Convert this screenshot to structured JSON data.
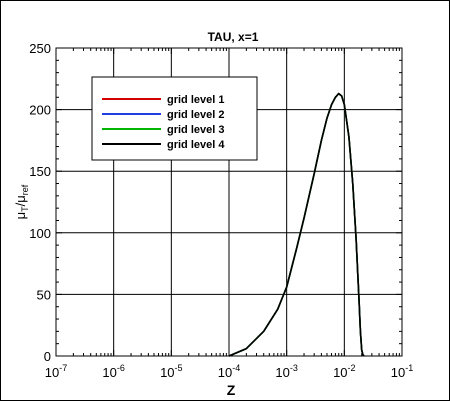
{
  "chart_data": {
    "type": "line",
    "title": "TAU, x=1",
    "xlabel": "Z",
    "ylabel_main": "μ",
    "ylabel_sub_num": "T",
    "ylabel_slash": "/μ",
    "ylabel_sub_den": "ref",
    "xscale": "log",
    "xlim": [
      1e-07,
      0.1
    ],
    "ylim": [
      0,
      250
    ],
    "grid": true,
    "legend_position": "top-left",
    "xticks": [
      {
        "base": "10",
        "exp": "-7"
      },
      {
        "base": "10",
        "exp": "-6"
      },
      {
        "base": "10",
        "exp": "-5"
      },
      {
        "base": "10",
        "exp": "-4"
      },
      {
        "base": "10",
        "exp": "-3"
      },
      {
        "base": "10",
        "exp": "-2"
      },
      {
        "base": "10",
        "exp": "-1"
      }
    ],
    "yticks": [
      "0",
      "50",
      "100",
      "150",
      "200",
      "250"
    ],
    "series": [
      {
        "name": "grid level 1",
        "color": "#d40000",
        "x": [
          0.0001,
          0.0002,
          0.0004,
          0.0007,
          0.001,
          0.0015,
          0.002,
          0.003,
          0.004,
          0.005,
          0.006,
          0.007,
          0.008,
          0.009,
          0.01,
          0.012,
          0.014,
          0.016,
          0.018,
          0.019,
          0.02,
          0.021,
          0.022
        ],
        "y": [
          0,
          6,
          20,
          38,
          56,
          88,
          112,
          148,
          175,
          193,
          204,
          210,
          213,
          211,
          204,
          178,
          140,
          95,
          45,
          20,
          5,
          1,
          0
        ]
      },
      {
        "name": "grid level 2",
        "color": "#1f3fe0",
        "x": [
          0.0001,
          0.0002,
          0.0004,
          0.0007,
          0.001,
          0.0015,
          0.002,
          0.003,
          0.004,
          0.005,
          0.006,
          0.007,
          0.008,
          0.009,
          0.01,
          0.012,
          0.014,
          0.016,
          0.018,
          0.019,
          0.02,
          0.021,
          0.022
        ],
        "y": [
          0,
          6,
          20,
          38,
          56,
          88,
          112,
          148,
          175,
          193,
          204,
          210,
          213,
          211,
          204,
          178,
          140,
          95,
          45,
          20,
          5,
          1,
          0
        ]
      },
      {
        "name": "grid level 3",
        "color": "#00b400",
        "x": [
          0.0001,
          0.0002,
          0.0004,
          0.0007,
          0.001,
          0.0015,
          0.002,
          0.003,
          0.004,
          0.005,
          0.006,
          0.007,
          0.008,
          0.009,
          0.01,
          0.012,
          0.014,
          0.016,
          0.018,
          0.019,
          0.02,
          0.021,
          0.022
        ],
        "y": [
          0,
          6,
          20,
          38,
          56,
          88,
          112,
          148,
          175,
          193,
          204,
          210,
          213,
          211,
          204,
          178,
          140,
          95,
          45,
          20,
          5,
          1,
          0
        ]
      },
      {
        "name": "grid level 4",
        "color": "#000000",
        "x": [
          0.0001,
          0.0002,
          0.0004,
          0.0007,
          0.001,
          0.0015,
          0.002,
          0.003,
          0.004,
          0.005,
          0.006,
          0.007,
          0.008,
          0.009,
          0.01,
          0.012,
          0.014,
          0.016,
          0.018,
          0.019,
          0.02,
          0.021,
          0.022
        ],
        "y": [
          0,
          6,
          20,
          38,
          56,
          88,
          112,
          148,
          175,
          193,
          204,
          210,
          213,
          211,
          204,
          178,
          140,
          95,
          45,
          20,
          5,
          1,
          0
        ]
      }
    ]
  }
}
